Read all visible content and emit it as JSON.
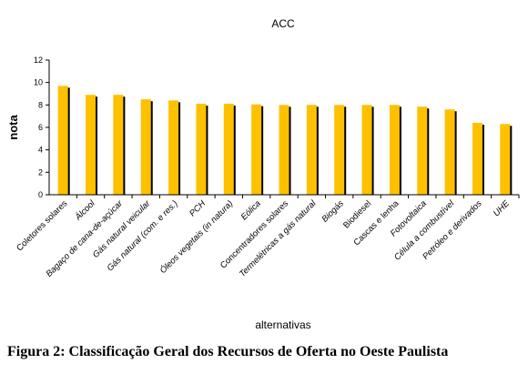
{
  "chart_data": {
    "type": "bar",
    "title": "ACC",
    "xlabel": "alternativas",
    "ylabel": "nota",
    "ylim": [
      0,
      12
    ],
    "yticks": [
      0,
      2,
      4,
      6,
      8,
      10,
      12
    ],
    "grid": false,
    "bar_color": "#FFC000",
    "shadow_color": "#000000",
    "categories": [
      {
        "label": "Coletores solares",
        "style": "normal"
      },
      {
        "label": "Álcool",
        "style": "italic"
      },
      {
        "label": "Bagaço de cana-de-açúcar",
        "style": "italic"
      },
      {
        "label": "Gás natural veicular",
        "style": "italic"
      },
      {
        "label": "Gás natural (com. e res.)",
        "style": "italic"
      },
      {
        "label": "PCH",
        "style": "italic"
      },
      {
        "label": "Óleos vegetais (in natura)",
        "style": "italic"
      },
      {
        "label": "Eólica",
        "style": "italic"
      },
      {
        "label": "Concentradores solares",
        "style": "normal"
      },
      {
        "label": "Termelétricas a gás natural",
        "style": "italic"
      },
      {
        "label": "Biogás",
        "style": "italic"
      },
      {
        "label": "Biodiesel",
        "style": "normal"
      },
      {
        "label": "Cascas e lenha",
        "style": "normal"
      },
      {
        "label": "Fotovoltaica",
        "style": "italic"
      },
      {
        "label": "Célula a combustível",
        "style": "italic"
      },
      {
        "label": "Petróleo e derivados",
        "style": "italic"
      },
      {
        "label": "UHE",
        "style": "italic"
      }
    ],
    "values": [
      9.7,
      8.9,
      8.9,
      8.5,
      8.4,
      8.1,
      8.1,
      8.05,
      8.0,
      8.0,
      8.0,
      8.0,
      8.0,
      7.85,
      7.6,
      6.4,
      6.3
    ]
  },
  "caption": "Figura 2: Classificação Geral dos Recursos de Oferta no Oeste Paulista"
}
